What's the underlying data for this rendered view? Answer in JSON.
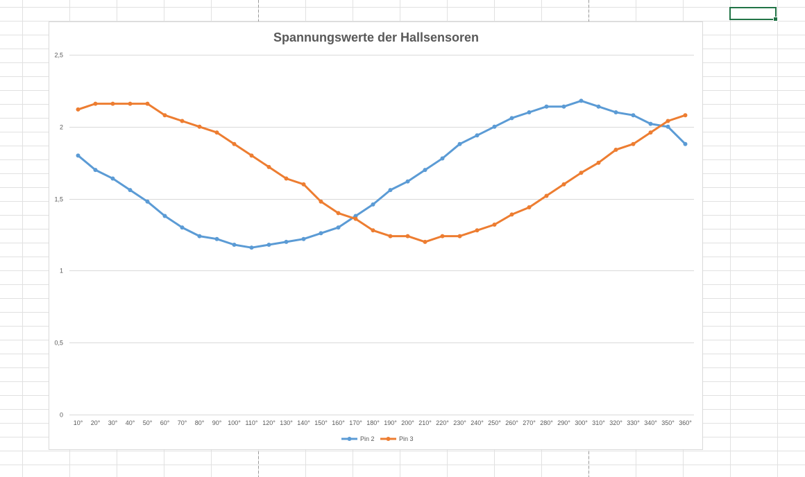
{
  "chart_data": {
    "type": "line",
    "title": "Spannungswerte der Hallsensoren",
    "xlabel": "",
    "ylabel": "",
    "categories": [
      "10°",
      "20°",
      "30°",
      "40°",
      "50°",
      "60°",
      "70°",
      "80°",
      "90°",
      "100°",
      "110°",
      "120°",
      "130°",
      "140°",
      "150°",
      "160°",
      "170°",
      "180°",
      "190°",
      "200°",
      "210°",
      "220°",
      "230°",
      "240°",
      "250°",
      "260°",
      "270°",
      "280°",
      "290°",
      "300°",
      "310°",
      "320°",
      "330°",
      "340°",
      "350°",
      "360°"
    ],
    "ylim": [
      0,
      2.5
    ],
    "yticks": [
      0,
      0.5,
      1,
      1.5,
      2,
      2.5
    ],
    "ytick_labels": [
      "0",
      "0,5",
      "1",
      "1,5",
      "2",
      "2,5"
    ],
    "grid": true,
    "legend_position": "bottom",
    "series": [
      {
        "name": "Pin 2",
        "color": "#5b9bd5",
        "values": [
          1.8,
          1.7,
          1.64,
          1.56,
          1.48,
          1.38,
          1.3,
          1.24,
          1.22,
          1.18,
          1.16,
          1.18,
          1.2,
          1.22,
          1.26,
          1.3,
          1.38,
          1.46,
          1.56,
          1.62,
          1.7,
          1.78,
          1.88,
          1.94,
          2.0,
          2.06,
          2.1,
          2.14,
          2.14,
          2.18,
          2.14,
          2.1,
          2.08,
          2.02,
          2.0,
          1.88
        ]
      },
      {
        "name": "Pin 3",
        "color": "#ed7d31",
        "values": [
          2.12,
          2.16,
          2.16,
          2.16,
          2.16,
          2.08,
          2.04,
          2.0,
          1.96,
          1.88,
          1.8,
          1.72,
          1.64,
          1.6,
          1.48,
          1.4,
          1.36,
          1.28,
          1.24,
          1.24,
          1.2,
          1.24,
          1.24,
          1.28,
          1.32,
          1.39,
          1.44,
          1.52,
          1.6,
          1.68,
          1.75,
          1.84,
          1.88,
          1.96,
          2.04,
          2.08
        ]
      }
    ]
  },
  "colors": {
    "grid": "#d9d9d9",
    "sheet_grid": "#e1e1e1",
    "selection": "#217346"
  }
}
